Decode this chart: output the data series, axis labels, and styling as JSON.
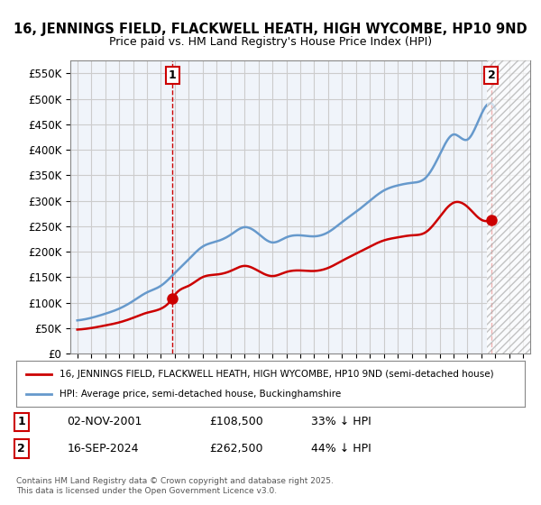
{
  "title": "16, JENNINGS FIELD, FLACKWELL HEATH, HIGH WYCOMBE, HP10 9ND",
  "subtitle": "Price paid vs. HM Land Registry's House Price Index (HPI)",
  "sale1_date": 2001.84,
  "sale1_price": 108500,
  "sale1_label": "1",
  "sale1_text": "02-NOV-2001",
  "sale1_amount": "£108,500",
  "sale1_hpi": "33% ↓ HPI",
  "sale2_date": 2024.71,
  "sale2_price": 262500,
  "sale2_label": "2",
  "sale2_text": "16-SEP-2024",
  "sale2_amount": "£262,500",
  "sale2_hpi": "44% ↓ HPI",
  "legend_property": "16, JENNINGS FIELD, FLACKWELL HEATH, HIGH WYCOMBE, HP10 9ND (semi-detached house)",
  "legend_hpi": "HPI: Average price, semi-detached house, Buckinghamshire",
  "footnote": "Contains HM Land Registry data © Crown copyright and database right 2025.\nThis data is licensed under the Open Government Licence v3.0.",
  "property_color": "#cc0000",
  "hpi_color": "#6699cc",
  "vline_color": "#cc0000",
  "background_color": "#ffffff",
  "grid_color": "#cccccc",
  "ylim": [
    0,
    575000
  ],
  "xlim": [
    1994.5,
    2027.5
  ]
}
